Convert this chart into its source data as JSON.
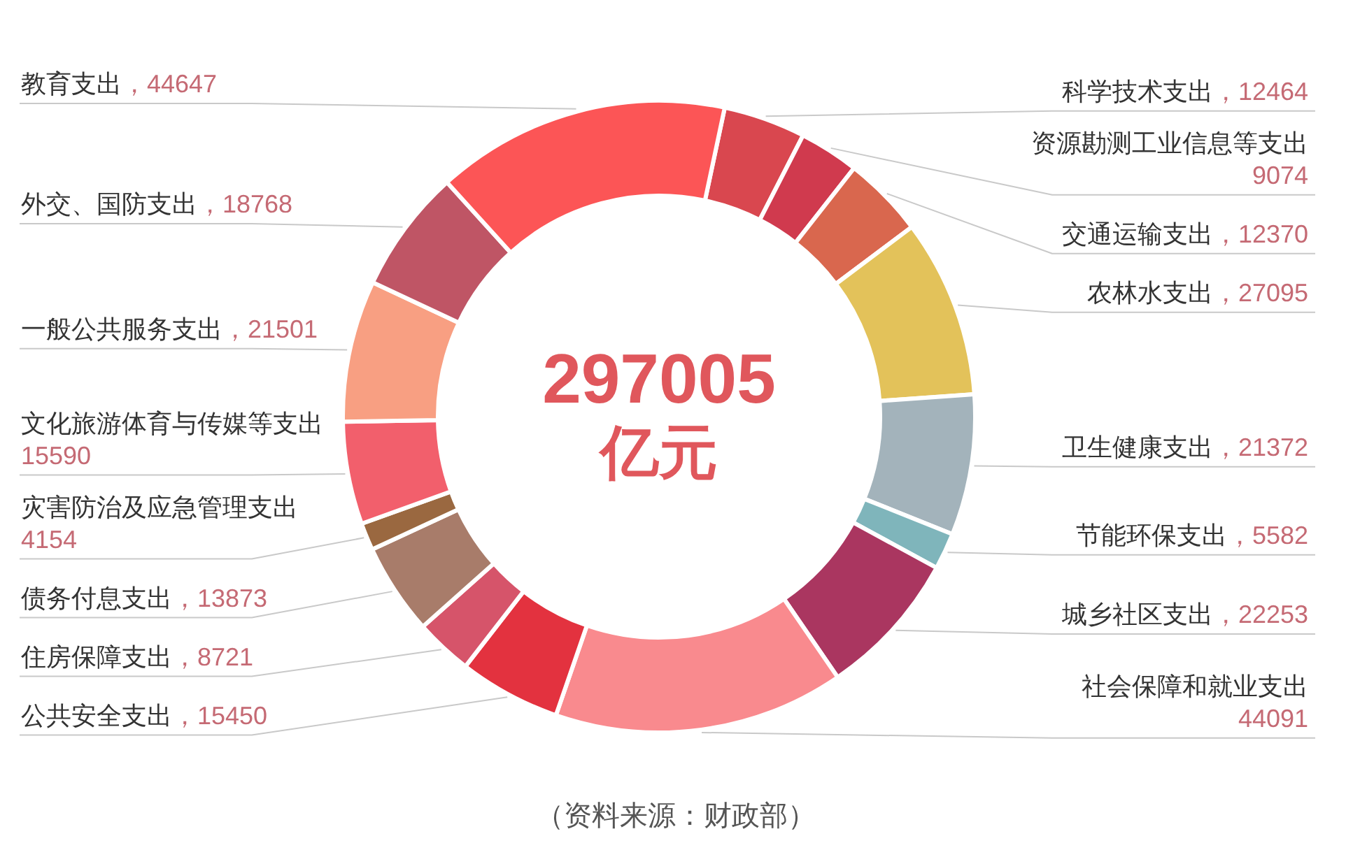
{
  "chart_data": {
    "type": "donut",
    "categories": [
      "科学技术支出",
      "资源勘测工业信息等支出",
      "交通运输支出",
      "农林水支出",
      "卫生健康支出",
      "节能环保支出",
      "城乡社区支出",
      "社会保障和就业支出",
      "公共安全支出",
      "住房保障支出",
      "债务付息支出",
      "灾害防治及应急管理支出",
      "文化旅游体育与传媒等支出",
      "一般公共服务支出",
      "外交、国防支出",
      "教育支出"
    ],
    "values": [
      12464,
      9074,
      12370,
      27095,
      21372,
      5582,
      22253,
      44091,
      15450,
      8721,
      13873,
      4154,
      15590,
      21501,
      18768,
      44647
    ],
    "value_labels": [
      "，12464",
      "9074",
      "，12370",
      "，27095",
      "，21372",
      "，5582",
      "，22253",
      "44091",
      "，15450",
      "，8721",
      "，13873",
      "4154",
      "15590",
      "，21501",
      "，18768",
      "，44647"
    ],
    "colors": [
      "#d9474f",
      "#d03a4e",
      "#d9674e",
      "#e3c25a",
      "#a3b3bb",
      "#7fb5bb",
      "#aa3660",
      "#f98a8e",
      "#e3323f",
      "#d6546a",
      "#a87c6a",
      "#9a6840",
      "#f25f6c",
      "#f89f82",
      "#bf5565",
      "#fc5556"
    ],
    "annotations": [
      "297005",
      "亿元",
      "（资料来源：财政部）"
    ]
  }
}
